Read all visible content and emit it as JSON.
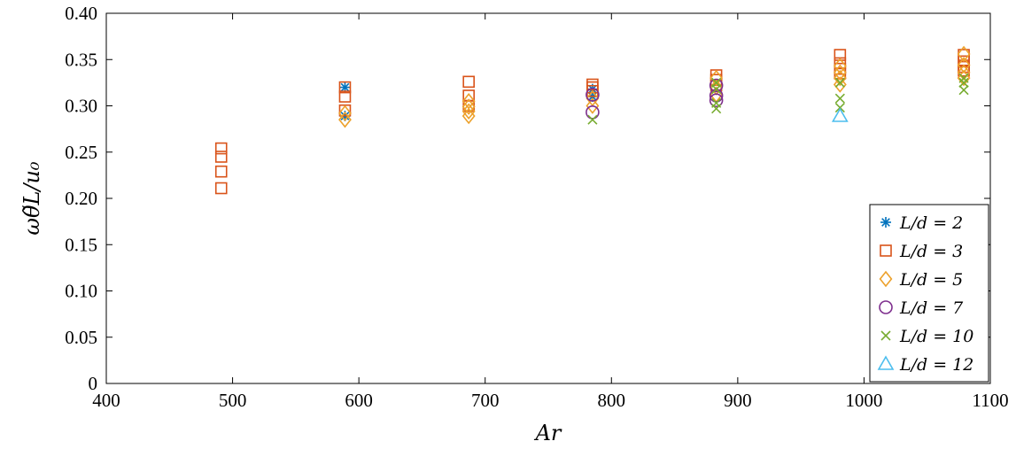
{
  "chart_data": {
    "type": "scatter",
    "title": "",
    "xlabel": "Ar",
    "ylabel": "ωθ̃L/u₀",
    "xlim": [
      400,
      1100
    ],
    "ylim": [
      0,
      0.4
    ],
    "xticks": [
      "400",
      "500",
      "600",
      "700",
      "800",
      "900",
      "1000",
      "1100"
    ],
    "yticks": [
      "0",
      "0.05",
      "0.10",
      "0.15",
      "0.20",
      "0.25",
      "0.30",
      "0.35",
      "0.40"
    ],
    "grid": false,
    "legend_position": "bottom-right",
    "series": [
      {
        "name": "L/d = 2",
        "marker": "asterisk",
        "color": "#0072BD",
        "points": [
          [
            589,
            0.32
          ],
          [
            589,
            0.289
          ],
          [
            785,
            0.318
          ],
          [
            785,
            0.31
          ]
        ]
      },
      {
        "name": "L/d = 3",
        "marker": "square",
        "color": "#D95319",
        "points": [
          [
            491,
            0.254
          ],
          [
            491,
            0.245
          ],
          [
            491,
            0.229
          ],
          [
            491,
            0.211
          ],
          [
            589,
            0.32
          ],
          [
            589,
            0.31
          ],
          [
            589,
            0.295
          ],
          [
            687,
            0.326
          ],
          [
            687,
            0.311
          ],
          [
            687,
            0.3
          ],
          [
            785,
            0.323
          ],
          [
            785,
            0.32
          ],
          [
            785,
            0.316
          ],
          [
            883,
            0.333
          ],
          [
            883,
            0.328
          ],
          [
            883,
            0.322
          ],
          [
            981,
            0.355
          ],
          [
            981,
            0.346
          ],
          [
            981,
            0.34
          ],
          [
            981,
            0.335
          ],
          [
            1079,
            0.355
          ],
          [
            1079,
            0.348
          ],
          [
            1079,
            0.342
          ],
          [
            1079,
            0.338
          ]
        ]
      },
      {
        "name": "L/d = 5",
        "marker": "diamond",
        "color": "#EDA12B",
        "points": [
          [
            589,
            0.285
          ],
          [
            589,
            0.292
          ],
          [
            687,
            0.305
          ],
          [
            687,
            0.299
          ],
          [
            687,
            0.294
          ],
          [
            687,
            0.289
          ],
          [
            785,
            0.308
          ],
          [
            785,
            0.3
          ],
          [
            883,
            0.33
          ],
          [
            883,
            0.32
          ],
          [
            883,
            0.312
          ],
          [
            981,
            0.343
          ],
          [
            981,
            0.336
          ],
          [
            981,
            0.33
          ],
          [
            981,
            0.323
          ],
          [
            1079,
            0.356
          ],
          [
            1079,
            0.344
          ],
          [
            1079,
            0.336
          ],
          [
            1079,
            0.33
          ]
        ]
      },
      {
        "name": "L/d = 7",
        "marker": "circle",
        "color": "#7E2F8E",
        "points": [
          [
            785,
            0.312
          ],
          [
            785,
            0.293
          ],
          [
            883,
            0.322
          ],
          [
            883,
            0.311
          ],
          [
            883,
            0.306
          ]
        ]
      },
      {
        "name": "L/d = 10",
        "marker": "x",
        "color": "#77AC30",
        "points": [
          [
            785,
            0.285
          ],
          [
            883,
            0.325
          ],
          [
            883,
            0.318
          ],
          [
            883,
            0.303
          ],
          [
            883,
            0.297
          ],
          [
            981,
            0.325
          ],
          [
            981,
            0.308
          ],
          [
            981,
            0.298
          ],
          [
            1079,
            0.33
          ],
          [
            1079,
            0.325
          ],
          [
            1079,
            0.317
          ]
        ]
      },
      {
        "name": "L/d = 12",
        "marker": "triangle",
        "color": "#4DBEEE",
        "points": [
          [
            981,
            0.289
          ]
        ]
      }
    ]
  }
}
